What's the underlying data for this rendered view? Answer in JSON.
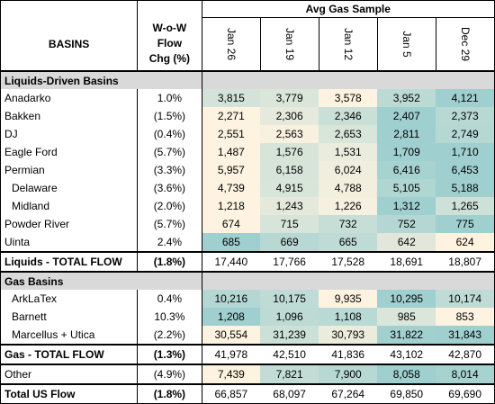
{
  "header": {
    "group_title": "Avg Gas Sample",
    "basins_label": "BASINS",
    "chg_label_line1": "W-o-W Flow",
    "chg_label_line2": "Chg (%)",
    "dates": [
      "Jan 26",
      "Jan 19",
      "Jan 12",
      "Jan 5",
      "Dec 29"
    ]
  },
  "liquids": {
    "section_label": "Liquids-Driven Basins",
    "rows": [
      {
        "name": "Anadarko",
        "chg": "1.0%",
        "values": [
          "3,815",
          "3,779",
          "3,578",
          "3,952",
          "4,121"
        ],
        "indent": false
      },
      {
        "name": "Bakken",
        "chg": "(1.5%)",
        "values": [
          "2,271",
          "2,306",
          "2,346",
          "2,407",
          "2,373"
        ],
        "indent": false
      },
      {
        "name": "DJ",
        "chg": "(0.4%)",
        "values": [
          "2,551",
          "2,563",
          "2,653",
          "2,811",
          "2,749"
        ],
        "indent": false
      },
      {
        "name": "Eagle Ford",
        "chg": "(5.7%)",
        "values": [
          "1,487",
          "1,576",
          "1,531",
          "1,709",
          "1,710"
        ],
        "indent": false
      },
      {
        "name": "Permian",
        "chg": "(3.3%)",
        "values": [
          "5,957",
          "6,158",
          "6,024",
          "6,416",
          "6,453"
        ],
        "indent": false
      },
      {
        "name": "Delaware",
        "chg": "(3.6%)",
        "values": [
          "4,739",
          "4,915",
          "4,788",
          "5,105",
          "5,188"
        ],
        "indent": true
      },
      {
        "name": "Midland",
        "chg": "(2.0%)",
        "values": [
          "1,218",
          "1,243",
          "1,226",
          "1,312",
          "1,265"
        ],
        "indent": true
      },
      {
        "name": "Powder River",
        "chg": "(5.7%)",
        "values": [
          "674",
          "715",
          "732",
          "752",
          "775"
        ],
        "indent": false
      },
      {
        "name": "Uinta",
        "chg": "2.4%",
        "values": [
          "685",
          "669",
          "665",
          "642",
          "624"
        ],
        "indent": false
      }
    ],
    "total": {
      "name": "Liquids - TOTAL FLOW",
      "chg": "(1.8%)",
      "values": [
        "17,440",
        "17,766",
        "17,528",
        "18,691",
        "18,807"
      ]
    }
  },
  "gas": {
    "section_label": "Gas Basins",
    "rows": [
      {
        "name": "ArkLaTex",
        "chg": "0.4%",
        "values": [
          "10,216",
          "10,175",
          "9,935",
          "10,295",
          "10,174"
        ],
        "indent": true
      },
      {
        "name": "Barnett",
        "chg": "10.3%",
        "values": [
          "1,208",
          "1,096",
          "1,108",
          "985",
          "853"
        ],
        "indent": true
      },
      {
        "name": "Marcellus + Utica",
        "chg": "(2.2%)",
        "values": [
          "30,554",
          "31,239",
          "30,793",
          "31,822",
          "31,843"
        ],
        "indent": true
      }
    ],
    "total": {
      "name": "Gas - TOTAL FLOW",
      "chg": "(1.3%)",
      "values": [
        "41,978",
        "42,510",
        "41,836",
        "43,102",
        "42,870"
      ]
    }
  },
  "other": {
    "name": "Other",
    "chg": "(4.9%)",
    "values": [
      "7,439",
      "7,821",
      "7,900",
      "8,058",
      "8,014"
    ]
  },
  "grand_total": {
    "name": "Total US Flow",
    "chg": "(1.8%)",
    "values": [
      "66,857",
      "68,097",
      "67,264",
      "69,850",
      "69,690"
    ]
  },
  "colors": {
    "section_bg": "#d9d9d9",
    "heat_low": "#fdf3e0",
    "heat_high": "#9fcfcf"
  }
}
